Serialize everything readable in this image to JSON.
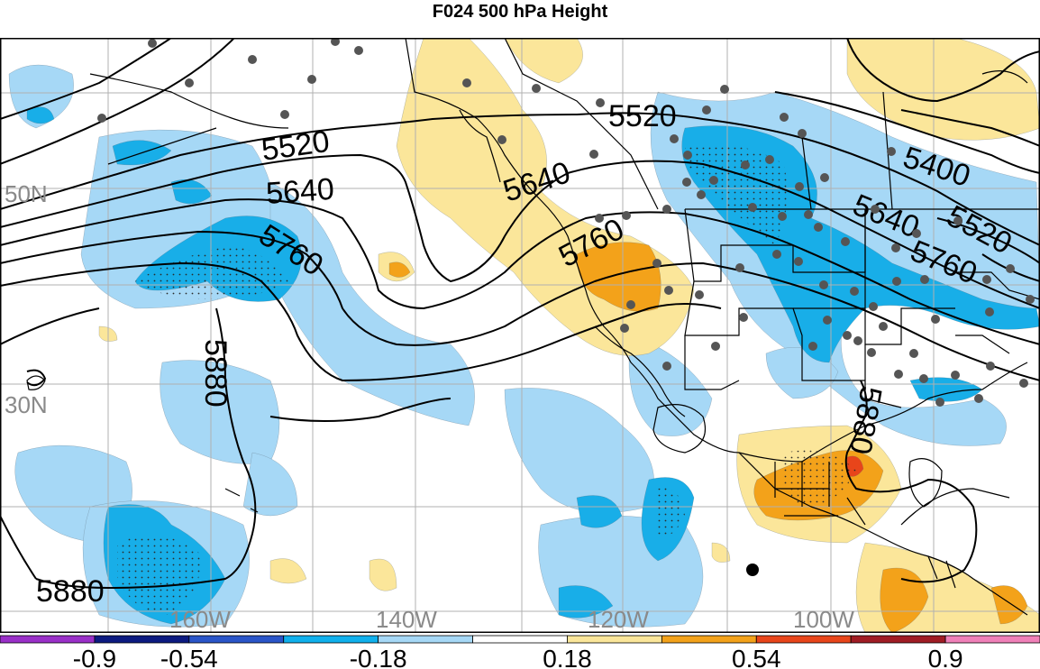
{
  "title": "F024 500 hPa Height",
  "lat_labels": [
    "50N",
    "30N"
  ],
  "lon_labels": [
    "160W",
    "140W",
    "120W",
    "100W"
  ],
  "contour_labels": [
    "5520",
    "5640",
    "5760",
    "5880",
    "5400"
  ],
  "colorbar": {
    "ticks": [
      "-0.9",
      "-0.54",
      "-0.18",
      "0.18",
      "0.54",
      "0.9"
    ],
    "colors": [
      "#9a30c8",
      "#0c1a80",
      "#2a55c8",
      "#10b0ec",
      "#a6d8f6",
      "#ffffff",
      "#fbe69a",
      "#f3a21a",
      "#e8451a",
      "#a01c24",
      "#f080b8"
    ]
  },
  "fill_colors": {
    "light_blue": "#a6d8f6",
    "blue": "#18aee8",
    "light_yellow": "#fbe69a",
    "orange": "#f3a21a",
    "red": "#e8451a"
  }
}
